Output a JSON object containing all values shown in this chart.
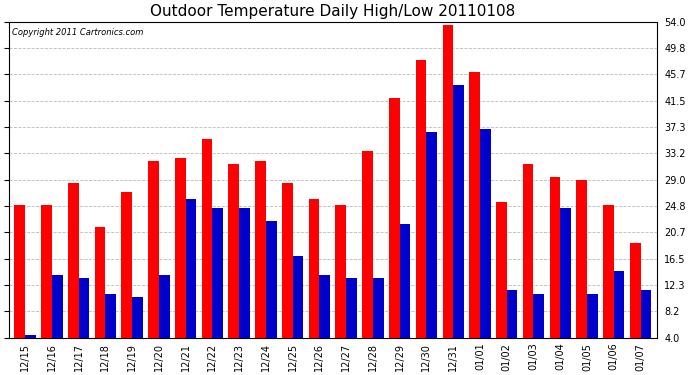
{
  "title": "Outdoor Temperature Daily High/Low 20110108",
  "copyright": "Copyright 2011 Cartronics.com",
  "categories": [
    "12/15",
    "12/16",
    "12/17",
    "12/18",
    "12/19",
    "12/20",
    "12/21",
    "12/22",
    "12/23",
    "12/24",
    "12/25",
    "12/26",
    "12/27",
    "12/28",
    "12/29",
    "12/30",
    "12/31",
    "01/01",
    "01/02",
    "01/03",
    "01/04",
    "01/05",
    "01/06",
    "01/07"
  ],
  "highs": [
    25.0,
    25.0,
    28.5,
    21.5,
    27.0,
    32.0,
    32.5,
    35.5,
    31.5,
    32.0,
    28.5,
    26.0,
    25.0,
    33.5,
    42.0,
    48.0,
    53.5,
    46.0,
    25.5,
    31.5,
    29.5,
    29.0,
    25.0,
    19.0
  ],
  "lows": [
    4.5,
    14.0,
    13.5,
    11.0,
    10.5,
    14.0,
    26.0,
    24.5,
    24.5,
    22.5,
    17.0,
    14.0,
    13.5,
    13.5,
    22.0,
    36.5,
    44.0,
    37.0,
    11.5,
    11.0,
    24.5,
    11.0,
    14.5,
    11.5
  ],
  "high_color": "#ff0000",
  "low_color": "#0000cc",
  "background_color": "#ffffff",
  "grid_color": "#bbbbbb",
  "yticks": [
    4.0,
    8.2,
    12.3,
    16.5,
    20.7,
    24.8,
    29.0,
    33.2,
    37.3,
    41.5,
    45.7,
    49.8,
    54.0
  ],
  "ylim": [
    4.0,
    54.0
  ],
  "title_fontsize": 11,
  "tick_fontsize": 7,
  "bar_width": 0.4
}
